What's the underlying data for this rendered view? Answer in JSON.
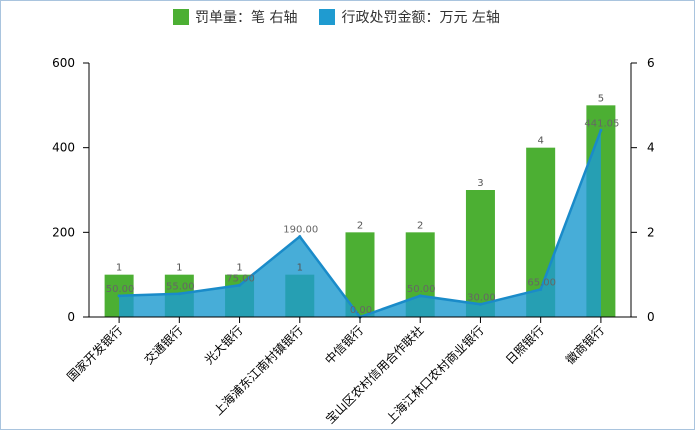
{
  "colors": {
    "bars": "#4caf33",
    "area_fill": "#1f9bd0",
    "area_line": "#1a8bc9",
    "axis": "#000000"
  },
  "legend": {
    "series1_label": "罚单量：笔 右轴",
    "series2_label": "行政处罚金额：万元 左轴"
  },
  "chart_data": {
    "type": "bar",
    "categories": [
      "国家开发银行",
      "交通银行",
      "光大银行",
      "上海浦东江南村镇银行",
      "中信银行",
      "宝山区农村信用合作联社",
      "上海江林口农村商业银行",
      "日照银行",
      "徽商银行"
    ],
    "series": [
      {
        "name": "罚单量：笔 右轴",
        "type": "bar",
        "axis": "right",
        "values": [
          1,
          1,
          1,
          1,
          2,
          2,
          3,
          4,
          5
        ],
        "labels": [
          "1",
          "1",
          "1",
          "1",
          "2",
          "2",
          "3",
          "4",
          "5"
        ]
      },
      {
        "name": "行政处罚金额：万元 左轴",
        "type": "area",
        "axis": "left",
        "values": [
          50,
          55,
          75,
          190,
          0,
          50,
          30,
          65,
          441.05
        ],
        "labels": [
          "50.00",
          "55.00",
          "75.00",
          "190.00",
          "0.00",
          "50.00",
          "30.00",
          "65.00",
          "441.05"
        ]
      }
    ],
    "y_left": {
      "ticks": [
        "0",
        "200",
        "400",
        "600"
      ],
      "ylim": [
        0,
        600
      ]
    },
    "y_right": {
      "ticks": [
        "0",
        "2",
        "4",
        "6"
      ],
      "ylim": [
        0,
        6
      ]
    },
    "legend_position": "top",
    "grid": false
  }
}
